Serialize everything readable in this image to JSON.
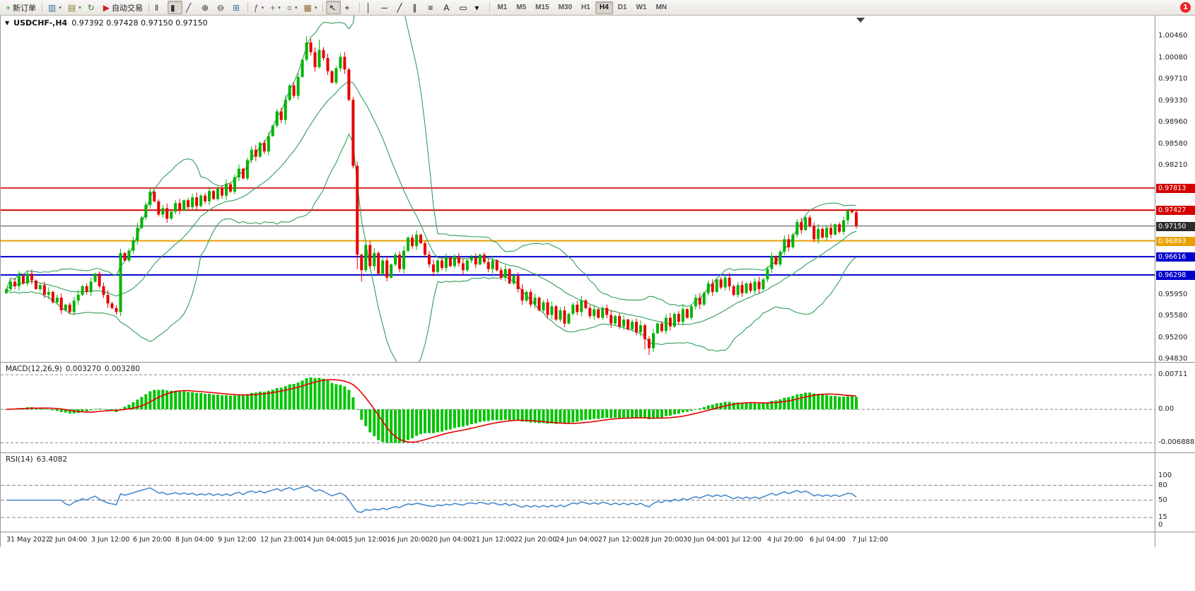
{
  "window": {
    "title": "USDCHF-,H4",
    "ohlc_text": "0.97392 0.97428 0.97150 0.97150"
  },
  "toolbar": {
    "items": [
      {
        "type": "labelbtn",
        "name": "new-order-button",
        "icon": "new-order-icon",
        "glyph": "+",
        "color": "#1ca41c",
        "label": "新订单"
      },
      {
        "type": "sep"
      },
      {
        "type": "icon",
        "name": "new-chart-icon",
        "icon": "new-chart-icon",
        "glyph": "▥",
        "color": "#3a6ea5",
        "dropdown": true
      },
      {
        "type": "icon",
        "name": "profiles-icon",
        "icon": "profiles-icon",
        "glyph": "▤",
        "color": "#8a7a2d",
        "dropdown": true
      },
      {
        "type": "icon",
        "name": "refresh-icon",
        "icon": "refresh-icon",
        "glyph": "↻",
        "color": "#2d8a2d"
      },
      {
        "type": "labelbtn",
        "name": "auto-trading-button",
        "icon": "auto-trading-icon",
        "glyph": "▶",
        "color": "#cc2222",
        "label": "自动交易"
      },
      {
        "type": "sep"
      },
      {
        "type": "icon",
        "name": "bar-chart-icon",
        "icon": "bar-chart-icon",
        "glyph": "‖",
        "color": "#333"
      },
      {
        "type": "icon",
        "name": "candlestick-chart-icon",
        "icon": "candlestick-chart-icon",
        "glyph": "▮",
        "color": "#333",
        "active": true
      },
      {
        "type": "icon",
        "name": "line-chart-icon",
        "icon": "line-chart-icon",
        "glyph": "╱",
        "color": "#333"
      },
      {
        "type": "icon",
        "name": "zoom-in-icon",
        "icon": "zoom-in-icon",
        "glyph": "⊕",
        "color": "#333"
      },
      {
        "type": "icon",
        "name": "zoom-out-icon",
        "icon": "zoom-out-icon",
        "glyph": "⊖",
        "color": "#333"
      },
      {
        "type": "icon",
        "name": "tile-windows-icon",
        "icon": "tile-windows-icon",
        "glyph": "⊞",
        "color": "#3a6ea5"
      },
      {
        "type": "sep"
      },
      {
        "type": "icon",
        "name": "indicators-icon",
        "icon": "indicators-icon",
        "glyph": "ƒ",
        "color": "#8a2d8a",
        "dropdown": true
      },
      {
        "type": "icon",
        "name": "add-indicator-icon",
        "icon": "add-indicator-icon",
        "glyph": "+",
        "color": "#2d8a2d",
        "dropdown": true
      },
      {
        "type": "icon",
        "name": "period-icon",
        "icon": "period-icon",
        "glyph": "○",
        "color": "#333",
        "dropdown": true
      },
      {
        "type": "icon",
        "name": "templates-icon",
        "icon": "templates-icon",
        "glyph": "▦",
        "color": "#8a6d2d",
        "dropdown": true
      },
      {
        "type": "sep"
      },
      {
        "type": "icon",
        "name": "cursor-icon",
        "icon": "cursor-icon",
        "glyph": "↖",
        "color": "#111",
        "active": true
      },
      {
        "type": "icon",
        "name": "crosshair-icon",
        "icon": "crosshair-icon",
        "glyph": "+",
        "color": "#111"
      },
      {
        "type": "sep"
      },
      {
        "type": "icon",
        "name": "vertical-line-icon",
        "icon": "vertical-line-icon",
        "glyph": "│",
        "color": "#111"
      },
      {
        "type": "icon",
        "name": "horizontal-line-icon",
        "icon": "horizontal-line-icon",
        "glyph": "─",
        "color": "#111"
      },
      {
        "type": "icon",
        "name": "trendline-icon",
        "icon": "trendline-icon",
        "glyph": "╱",
        "color": "#111"
      },
      {
        "type": "icon",
        "name": "channel-icon",
        "icon": "channel-icon",
        "glyph": "∥",
        "color": "#111"
      },
      {
        "type": "icon",
        "name": "fibonacci-icon",
        "icon": "fibonacci-icon",
        "glyph": "≡",
        "color": "#111"
      },
      {
        "type": "icon",
        "name": "text-icon",
        "icon": "text-icon",
        "glyph": "A",
        "color": "#111"
      },
      {
        "type": "icon",
        "name": "label-icon",
        "icon": "label-icon",
        "glyph": "▭",
        "color": "#111"
      },
      {
        "type": "icon",
        "name": "arrows-icon",
        "icon": "arrows-icon",
        "glyph": "▾",
        "color": "#111"
      },
      {
        "type": "sep"
      },
      {
        "type": "tf",
        "name": "timeframe-m1-button",
        "label": "M1"
      },
      {
        "type": "tf",
        "name": "timeframe-m5-button",
        "label": "M5"
      },
      {
        "type": "tf",
        "name": "timeframe-m15-button",
        "label": "M15"
      },
      {
        "type": "tf",
        "name": "timeframe-m30-button",
        "label": "M30"
      },
      {
        "type": "tf",
        "name": "timeframe-h1-button",
        "label": "H1"
      },
      {
        "type": "tf",
        "name": "timeframe-h4-button",
        "label": "H4",
        "active": true
      },
      {
        "type": "tf",
        "name": "timeframe-d1-button",
        "label": "D1"
      },
      {
        "type": "tf",
        "name": "timeframe-w1-button",
        "label": "W1"
      },
      {
        "type": "tf",
        "name": "timeframe-mn-button",
        "label": "MN"
      },
      {
        "type": "spacer"
      },
      {
        "type": "badge",
        "name": "notification-badge",
        "label": "1"
      }
    ]
  },
  "price_axis": {
    "labels": [
      {
        "text": "1.00460",
        "value": 1.0046
      },
      {
        "text": "1.00080",
        "value": 1.0008
      },
      {
        "text": "0.99710",
        "value": 0.9971
      },
      {
        "text": "0.99330",
        "value": 0.9933
      },
      {
        "text": "0.98960",
        "value": 0.9896
      },
      {
        "text": "0.98580",
        "value": 0.9858
      },
      {
        "text": "0.98210",
        "value": 0.9821
      },
      {
        "text": "0.95950",
        "value": 0.9595
      },
      {
        "text": "0.95580",
        "value": 0.9558
      },
      {
        "text": "0.95200",
        "value": 0.952
      },
      {
        "text": "0.94830",
        "value": 0.9483
      }
    ],
    "badges": [
      {
        "text": "0.97813",
        "value": 0.97813,
        "color": "#d40000"
      },
      {
        "text": "0.97427",
        "value": 0.97427,
        "color": "#d40000"
      },
      {
        "text": "0.97150",
        "value": 0.9715,
        "color": "#2b2b2b"
      },
      {
        "text": "0.96893",
        "value": 0.96893,
        "color": "#e8a000"
      },
      {
        "text": "0.96616",
        "value": 0.96616,
        "color": "#0000cd"
      },
      {
        "text": "0.96298",
        "value": 0.96298,
        "color": "#0000cd"
      }
    ]
  },
  "hlines": [
    {
      "price": 0.97813,
      "color": "#d40000",
      "width": 1.6
    },
    {
      "price": 0.97427,
      "color": "#d40000",
      "width": 2
    },
    {
      "price": 0.9715,
      "color": "#444444",
      "width": 1
    },
    {
      "price": 0.96893,
      "color": "#e8a000",
      "width": 2
    },
    {
      "price": 0.96616,
      "color": "#0000cd",
      "width": 2
    },
    {
      "price": 0.96298,
      "color": "#0000cd",
      "width": 2
    }
  ],
  "macd": {
    "name": "MACD(12,26,9)",
    "value": "0.003270",
    "signal": "0.003280",
    "ylim": [
      -0.009,
      0.0096
    ],
    "clamp": [
      -0.006888,
      0.00711
    ],
    "axis_labels": [
      {
        "text": "0.00711",
        "value": 0.00711
      },
      {
        "text": "0.00",
        "value": 0
      },
      {
        "text": "-0.006888",
        "value": -0.006888
      }
    ]
  },
  "rsi": {
    "name": "RSI(14)",
    "value": "63.4082",
    "period": 14,
    "ylim": [
      -15,
      145
    ],
    "levels": [
      80,
      50,
      15
    ],
    "axis_labels": [
      {
        "text": "100",
        "value": 100
      },
      {
        "text": "80",
        "value": 80
      },
      {
        "text": "50",
        "value": 50
      },
      {
        "text": "15",
        "value": 15
      },
      {
        "text": "0",
        "value": 0
      }
    ]
  },
  "colors": {
    "up": "#00b300",
    "down": "#e60000",
    "bollinger": "#2f9e5b",
    "macd_hist": "#00c400",
    "macd_signal": "#e60000",
    "rsi_line": "#3d85c8",
    "level_dash": "#888888"
  },
  "chart_data": {
    "type": "candlestick",
    "symbol": "USDCHF",
    "timeframe": "H4",
    "ylim": [
      0.9478,
      1.0082
    ],
    "indicators": [
      {
        "type": "bollinger",
        "period": 20,
        "deviation": 2
      },
      {
        "type": "macd",
        "fast": 12,
        "slow": 26,
        "signal": 9,
        "current": [
          0.00327,
          0.00328
        ]
      },
      {
        "type": "rsi",
        "period": 14,
        "current": 63.4082
      }
    ],
    "time_labels": [
      {
        "text": "31 May 2022",
        "bar": 0
      },
      {
        "text": "2 Jun 04:00",
        "bar": 10
      },
      {
        "text": "3 Jun 12:00",
        "bar": 20
      },
      {
        "text": "6 Jun 20:00",
        "bar": 30
      },
      {
        "text": "8 Jun 04:00",
        "bar": 40
      },
      {
        "text": "9 Jun 12:00",
        "bar": 50
      },
      {
        "text": "12 Jun 23:00",
        "bar": 60
      },
      {
        "text": "14 Jun 04:00",
        "bar": 70
      },
      {
        "text": "15 Jun 12:00",
        "bar": 80
      },
      {
        "text": "16 Jun 20:00",
        "bar": 90
      },
      {
        "text": "20 Jun 04:00",
        "bar": 100
      },
      {
        "text": "21 Jun 12:00",
        "bar": 110
      },
      {
        "text": "22 Jun 20:00",
        "bar": 120
      },
      {
        "text": "24 Jun 04:00",
        "bar": 130
      },
      {
        "text": "27 Jun 12:00",
        "bar": 140
      },
      {
        "text": "28 Jun 20:00",
        "bar": 150
      },
      {
        "text": "30 Jun 04:00",
        "bar": 160
      },
      {
        "text": "1 Jul 12:00",
        "bar": 170
      },
      {
        "text": "4 Jul 20:00",
        "bar": 180
      },
      {
        "text": "6 Jul 04:00",
        "bar": 190
      },
      {
        "text": "7 Jul 12:00",
        "bar": 200
      }
    ],
    "candles": {
      "open0": 0.9598,
      "closes": [
        0.9605,
        0.9618,
        0.961,
        0.9628,
        0.9615,
        0.9632,
        0.962,
        0.9605,
        0.9612,
        0.9595,
        0.96,
        0.9582,
        0.959,
        0.9568,
        0.9578,
        0.9565,
        0.9585,
        0.9595,
        0.961,
        0.96,
        0.9618,
        0.9632,
        0.961,
        0.9595,
        0.958,
        0.9572,
        0.9565,
        0.9668,
        0.9655,
        0.9672,
        0.969,
        0.9712,
        0.973,
        0.9752,
        0.9775,
        0.9758,
        0.9735,
        0.9746,
        0.9728,
        0.974,
        0.9755,
        0.9742,
        0.976,
        0.9748,
        0.9765,
        0.975,
        0.9768,
        0.9758,
        0.9776,
        0.9762,
        0.978,
        0.9768,
        0.9788,
        0.9775,
        0.98,
        0.9815,
        0.9798,
        0.983,
        0.9848,
        0.9836,
        0.986,
        0.9845,
        0.9872,
        0.989,
        0.9915,
        0.99,
        0.9935,
        0.996,
        0.9942,
        0.9975,
        1.0005,
        1.0035,
        1.0018,
        0.9992,
        1.0022,
        1.0008,
        0.9985,
        0.9965,
        0.999,
        1.001,
        0.9988,
        0.9935,
        0.982,
        0.9665,
        0.9638,
        0.9682,
        0.9645,
        0.9668,
        0.9632,
        0.9655,
        0.9625,
        0.9648,
        0.9665,
        0.964,
        0.9672,
        0.9695,
        0.968,
        0.97,
        0.9685,
        0.9665,
        0.9648,
        0.9635,
        0.9655,
        0.9642,
        0.966,
        0.9645,
        0.9662,
        0.965,
        0.9638,
        0.9655,
        0.966,
        0.9648,
        0.9665,
        0.9652,
        0.964,
        0.9655,
        0.9638,
        0.9625,
        0.964,
        0.9615,
        0.9628,
        0.9605,
        0.9585,
        0.96,
        0.9578,
        0.959,
        0.9568,
        0.9582,
        0.956,
        0.9575,
        0.9552,
        0.9568,
        0.9545,
        0.9562,
        0.9578,
        0.9565,
        0.9585,
        0.9572,
        0.9558,
        0.957,
        0.9555,
        0.9572,
        0.956,
        0.9545,
        0.9558,
        0.954,
        0.9552,
        0.9535,
        0.9548,
        0.953,
        0.9542,
        0.9518,
        0.9502,
        0.9528,
        0.9545,
        0.9532,
        0.9555,
        0.954,
        0.9562,
        0.9548,
        0.957,
        0.9555,
        0.9575,
        0.959,
        0.9578,
        0.9598,
        0.9615,
        0.96,
        0.9622,
        0.9608,
        0.9625,
        0.961,
        0.9595,
        0.9612,
        0.9598,
        0.9615,
        0.9602,
        0.9618,
        0.9605,
        0.9622,
        0.964,
        0.9662,
        0.9648,
        0.967,
        0.9692,
        0.9678,
        0.97,
        0.9722,
        0.9708,
        0.973,
        0.9715,
        0.9692,
        0.971,
        0.9695,
        0.9712,
        0.97,
        0.9718,
        0.9705,
        0.9725,
        0.9742,
        0.9739,
        0.9715
      ],
      "wick_overrides": {
        "27": {
          "low": 0.9558
        },
        "71": {
          "high": 1.0046
        },
        "74": {
          "high": 1.004
        },
        "83": {
          "low": 0.964
        },
        "84": {
          "low": 0.9618
        },
        "151": {
          "low": 0.95
        },
        "152": {
          "low": 0.949
        },
        "199": {
          "high": 0.97428
        },
        "201": {
          "high": 0.97428
        }
      }
    }
  }
}
